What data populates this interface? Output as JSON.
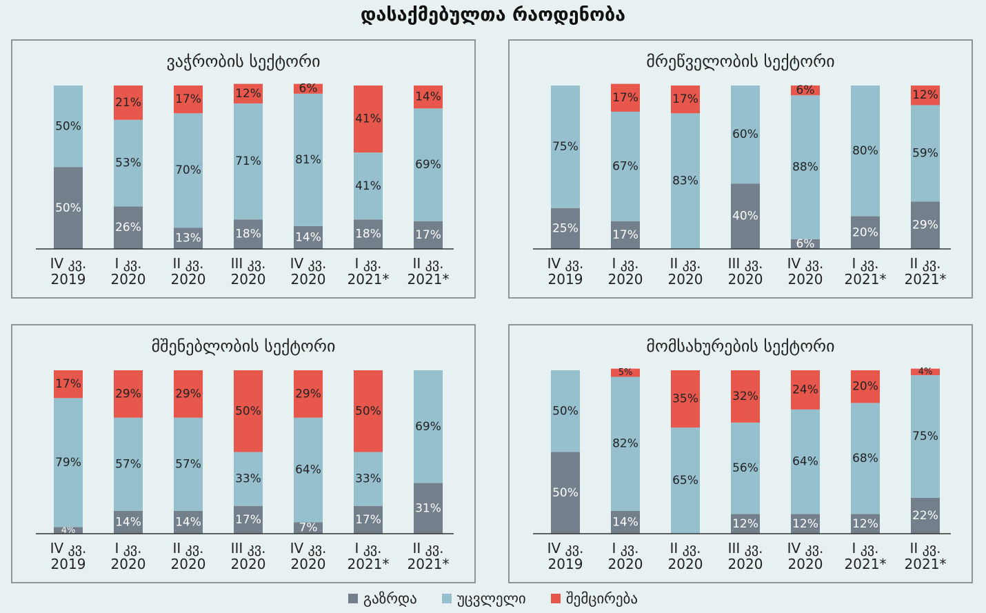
{
  "title": "დასაქმებულთა რაოდენობა",
  "legend": [
    {
      "key": "increase",
      "label": "გაზრდა",
      "color": "#737f8a"
    },
    {
      "key": "unchanged",
      "label": "უცვლელი",
      "color": "#97c0cf"
    },
    {
      "key": "decrease",
      "label": "შემცირება",
      "color": "#e8574c"
    }
  ],
  "chart_data": [
    {
      "type": "bar",
      "stacked": true,
      "title": "ვაჭრობის სექტორი",
      "categories": [
        "IV კვ. 2019",
        "I კვ. 2020",
        "II კვ. 2020",
        "III კვ. 2020",
        "IV კვ. 2020",
        "I კვ. 2021*",
        "II კვ. 2021*"
      ],
      "series": [
        {
          "name": "გაზრდა",
          "values": [
            50,
            26,
            13,
            18,
            14,
            18,
            17
          ]
        },
        {
          "name": "უცვლელი",
          "values": [
            50,
            53,
            70,
            71,
            81,
            41,
            69
          ]
        },
        {
          "name": "შემცირება",
          "values": [
            0,
            21,
            17,
            12,
            6,
            41,
            14
          ]
        }
      ]
    },
    {
      "type": "bar",
      "stacked": true,
      "title": "მრეწველობის სექტორი",
      "categories": [
        "IV კვ. 2019",
        "I კვ. 2020",
        "II კვ. 2020",
        "III კვ. 2020",
        "IV კვ. 2020",
        "I კვ. 2021*",
        "II კვ. 2021*"
      ],
      "series": [
        {
          "name": "გაზრდა",
          "values": [
            25,
            17,
            0,
            40,
            6,
            20,
            29
          ]
        },
        {
          "name": "უცვლელი",
          "values": [
            75,
            67,
            83,
            60,
            88,
            80,
            59
          ]
        },
        {
          "name": "შემცირება",
          "values": [
            0,
            17,
            17,
            0,
            6,
            0,
            12
          ]
        }
      ]
    },
    {
      "type": "bar",
      "stacked": true,
      "title": "მშენებლობის სექტორი",
      "categories": [
        "IV კვ. 2019",
        "I კვ. 2020",
        "II კვ. 2020",
        "III კვ. 2020",
        "IV კვ. 2020",
        "I კვ. 2021*",
        "II კვ. 2021*"
      ],
      "series": [
        {
          "name": "გაზრდა",
          "values": [
            4,
            14,
            14,
            17,
            7,
            17,
            31
          ]
        },
        {
          "name": "უცვლელი",
          "values": [
            79,
            57,
            57,
            33,
            64,
            33,
            69
          ]
        },
        {
          "name": "შემცირება",
          "values": [
            17,
            29,
            29,
            50,
            29,
            50,
            0
          ]
        }
      ]
    },
    {
      "type": "bar",
      "stacked": true,
      "title": "მომსახურების სექტორი",
      "categories": [
        "IV კვ. 2019",
        "I კვ. 2020",
        "II კვ. 2020",
        "III კვ. 2020",
        "IV კვ. 2020",
        "I კვ. 2021*",
        "II კვ. 2021*"
      ],
      "series": [
        {
          "name": "გაზრდა",
          "values": [
            50,
            14,
            0,
            12,
            12,
            12,
            22
          ]
        },
        {
          "name": "უცვლელი",
          "values": [
            50,
            82,
            65,
            56,
            64,
            68,
            75
          ]
        },
        {
          "name": "შემცირება",
          "values": [
            0,
            5,
            35,
            32,
            24,
            20,
            4
          ]
        }
      ]
    }
  ]
}
